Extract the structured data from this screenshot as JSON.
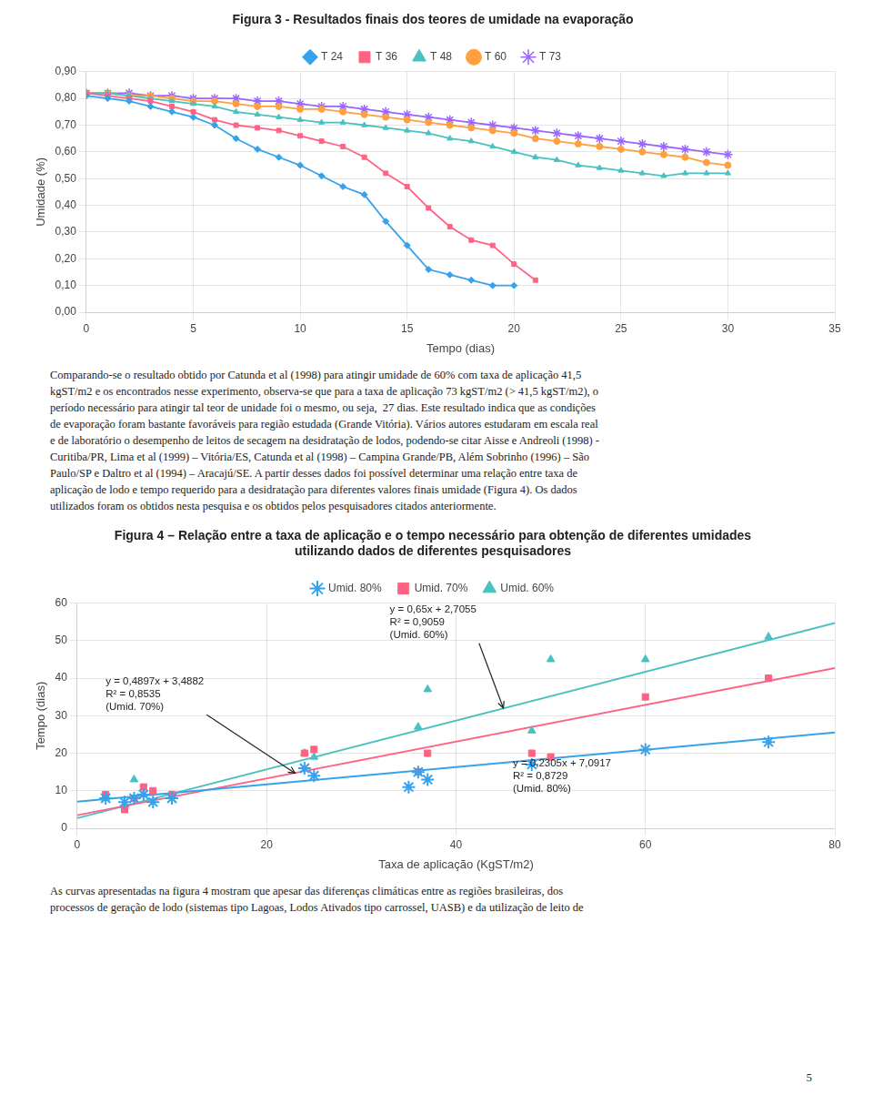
{
  "chart_data": [
    {
      "type": "line",
      "title": "Figura 3 - Resultados finais dos teores de umidade na evaporação",
      "x_label": "Tempo (dias)",
      "y_label": "Umidade (%)",
      "xlim": [
        0,
        35
      ],
      "xticks": [
        0,
        5,
        10,
        15,
        20,
        25,
        30,
        35
      ],
      "ylim": [
        0.0,
        0.9
      ],
      "yticks": [
        {
          "value": 0.0,
          "label": "0,00"
        },
        {
          "value": 0.1,
          "label": "0,10"
        },
        {
          "value": 0.2,
          "label": "0,20"
        },
        {
          "value": 0.3,
          "label": "0,30"
        },
        {
          "value": 0.4,
          "label": "0,40"
        },
        {
          "value": 0.5,
          "label": "0,50"
        },
        {
          "value": 0.6,
          "label": "0,60"
        },
        {
          "value": 0.7,
          "label": "0,70"
        },
        {
          "value": 0.8,
          "label": "0,80"
        },
        {
          "value": 0.9,
          "label": "0,90"
        }
      ],
      "grid": true,
      "legend": "top",
      "series": [
        {
          "name": "T 24",
          "marker": "diamond",
          "x": [
            0,
            1,
            2,
            3,
            4,
            5,
            6,
            7,
            8,
            9,
            10,
            11,
            12,
            13,
            14,
            15,
            16,
            17,
            18,
            19,
            20
          ],
          "values": [
            0.81,
            0.8,
            0.79,
            0.77,
            0.75,
            0.73,
            0.7,
            0.65,
            0.61,
            0.58,
            0.55,
            0.51,
            0.47,
            0.44,
            0.34,
            0.25,
            0.16,
            0.14,
            0.12,
            0.1,
            0.1
          ]
        },
        {
          "name": "T 36",
          "marker": "square",
          "x": [
            0,
            1,
            2,
            3,
            4,
            5,
            6,
            7,
            8,
            9,
            10,
            11,
            12,
            13,
            14,
            15,
            16,
            17,
            18,
            19,
            20,
            21
          ],
          "values": [
            0.82,
            0.81,
            0.8,
            0.79,
            0.77,
            0.75,
            0.72,
            0.7,
            0.69,
            0.68,
            0.66,
            0.64,
            0.62,
            0.58,
            0.52,
            0.47,
            0.39,
            0.32,
            0.27,
            0.25,
            0.18,
            0.12
          ]
        },
        {
          "name": "T 48",
          "marker": "triangle",
          "x": [
            0,
            1,
            2,
            3,
            4,
            5,
            6,
            7,
            8,
            9,
            10,
            11,
            12,
            13,
            14,
            15,
            16,
            17,
            18,
            19,
            20,
            21,
            22,
            23,
            24,
            25,
            26,
            27,
            28,
            29,
            30
          ],
          "values": [
            0.82,
            0.82,
            0.81,
            0.8,
            0.79,
            0.78,
            0.77,
            0.75,
            0.74,
            0.73,
            0.72,
            0.71,
            0.71,
            0.7,
            0.69,
            0.68,
            0.67,
            0.65,
            0.64,
            0.62,
            0.6,
            0.58,
            0.57,
            0.55,
            0.54,
            0.53,
            0.52,
            0.51,
            0.52,
            0.52,
            0.52
          ]
        },
        {
          "name": "T 60",
          "marker": "circle",
          "x": [
            0,
            1,
            2,
            3,
            4,
            5,
            6,
            7,
            8,
            9,
            10,
            11,
            12,
            13,
            14,
            15,
            16,
            17,
            18,
            19,
            20,
            21,
            22,
            23,
            24,
            25,
            26,
            27,
            28,
            29,
            30
          ],
          "values": [
            0.82,
            0.82,
            0.81,
            0.81,
            0.8,
            0.79,
            0.79,
            0.78,
            0.77,
            0.77,
            0.76,
            0.76,
            0.75,
            0.74,
            0.73,
            0.72,
            0.71,
            0.7,
            0.69,
            0.68,
            0.67,
            0.65,
            0.64,
            0.63,
            0.62,
            0.61,
            0.6,
            0.59,
            0.58,
            0.56,
            0.55
          ]
        },
        {
          "name": "T 73",
          "marker": "star",
          "x": [
            0,
            1,
            2,
            3,
            4,
            5,
            6,
            7,
            8,
            9,
            10,
            11,
            12,
            13,
            14,
            15,
            16,
            17,
            18,
            19,
            20,
            21,
            22,
            23,
            24,
            25,
            26,
            27,
            28,
            29,
            30
          ],
          "values": [
            0.82,
            0.82,
            0.82,
            0.81,
            0.81,
            0.8,
            0.8,
            0.8,
            0.79,
            0.79,
            0.78,
            0.77,
            0.77,
            0.76,
            0.75,
            0.74,
            0.73,
            0.72,
            0.71,
            0.7,
            0.69,
            0.68,
            0.67,
            0.66,
            0.65,
            0.64,
            0.63,
            0.62,
            0.61,
            0.6,
            0.59
          ]
        }
      ]
    },
    {
      "type": "scatter",
      "title": [
        "Figura 4 – Relação entre a taxa de aplicação e o tempo necessário para obtenção de diferentes umidades",
        "utilizando dados de diferentes pesquisadores"
      ],
      "x_label": "Taxa de aplicação (KgST/m2)",
      "y_label": "Tempo (dias)",
      "xlim": [
        0,
        80
      ],
      "xticks": [
        0,
        20,
        40,
        60,
        80
      ],
      "ylim": [
        0,
        60
      ],
      "yticks": [
        0,
        10,
        20,
        30,
        40,
        50,
        60
      ],
      "grid": true,
      "legend": "top",
      "series": [
        {
          "name": "Umid. 80%",
          "type": "scatter",
          "marker": "star",
          "x": [
            3,
            5,
            6,
            7,
            8,
            10,
            24,
            25,
            35,
            36,
            37,
            48,
            60,
            73
          ],
          "values": [
            8,
            7,
            8,
            9,
            7,
            8,
            16,
            14,
            11,
            15,
            13,
            17,
            21,
            23
          ]
        },
        {
          "name": "Umid. 70%",
          "type": "scatter",
          "marker": "square",
          "x": [
            3,
            5,
            6,
            7,
            8,
            10,
            24,
            25,
            36,
            37,
            48,
            50,
            60,
            73
          ],
          "values": [
            9,
            5,
            8,
            11,
            10,
            9,
            20,
            21,
            15,
            20,
            20,
            19,
            35,
            40
          ]
        },
        {
          "name": "Umid. 60%",
          "type": "scatter",
          "marker": "triangle",
          "x": [
            3,
            5,
            6,
            7,
            24,
            25,
            36,
            37,
            48,
            50,
            60,
            73
          ],
          "values": [
            8,
            6,
            13,
            9,
            20,
            19,
            27,
            37,
            26,
            45,
            45,
            51
          ]
        },
        {
          "type": "line",
          "line_style": "solid",
          "x": [
            0,
            80
          ],
          "values": [
            7.0917,
            25.5317
          ]
        },
        {
          "type": "line",
          "line_style": "solid",
          "x": [
            0,
            80
          ],
          "values": [
            3.4882,
            42.6642
          ]
        },
        {
          "type": "line",
          "line_style": "solid",
          "x": [
            0,
            80
          ],
          "values": [
            2.7055,
            54.7055
          ]
        }
      ],
      "annotations": [
        {
          "text": [
            "y = 0,65x + 2,7055",
            "R² = 0,9059",
            "(Umid. 60%)"
          ],
          "xy": [
            45,
            32.0
          ],
          "xytext": [
            33,
            50
          ]
        },
        {
          "text": [
            "y = 0,4897x + 3,4882",
            "R² = 0,8535",
            "(Umid. 70%)"
          ],
          "xy": [
            23,
            14.7
          ],
          "xytext": [
            3,
            31
          ]
        },
        {
          "text": [
            "y = 0,2305x + 7,0917",
            "R² = 0,8729",
            "(Umid. 80%)"
          ],
          "xy": [
            51,
            18.8
          ],
          "xytext": [
            46,
            9
          ]
        }
      ]
    }
  ],
  "paragraphs": [
    [
      "Comparando-se o resultado obtido por Catunda et al (1998) para atingir umidade de 60% com taxa de aplicação 41,5",
      "kgST/m2 e os encontrados nesse experimento, observa-se que para a taxa de aplicação 73 kgST/m2 (> 41,5 kgST/m2), o",
      "período necessário para atingir tal teor de unidade foi o mesmo, ou seja,  27 dias. Este resultado indica que as condições",
      "de evaporação foram bastante favoráveis para região estudada (Grande Vitória). Vários autores estudaram em escala real",
      "e de laboratório o desempenho de leitos de secagem na desidratação de lodos, podendo-se citar Aisse e Andreoli (1998) -",
      "Curitiba/PR, Lima et al (1999) – Vitória/ES, Catunda et al (1998) – Campina Grande/PB, Além Sobrinho (1996) – São",
      "Paulo/SP e Daltro et al (1994) – Aracajú/SE. A partir desses dados foi possível determinar uma relação entre taxa de",
      "aplicação de lodo e tempo requerido para a desidratação para diferentes valores finais umidade (Figura 4). Os dados",
      "utilizados foram os obtidos nesta pesquisa e os obtidos pelos pesquisadores citados anteriormente."
    ],
    [
      "As curvas apresentadas na figura 4 mostram que apesar das diferenças climáticas entre as regiões brasileiras, dos",
      "processos de geração de lodo (sistemas tipo Lagoas, Lodos Ativados tipo carrossel, UASB) e da utilização de leito de"
    ]
  ],
  "page_number": "5"
}
